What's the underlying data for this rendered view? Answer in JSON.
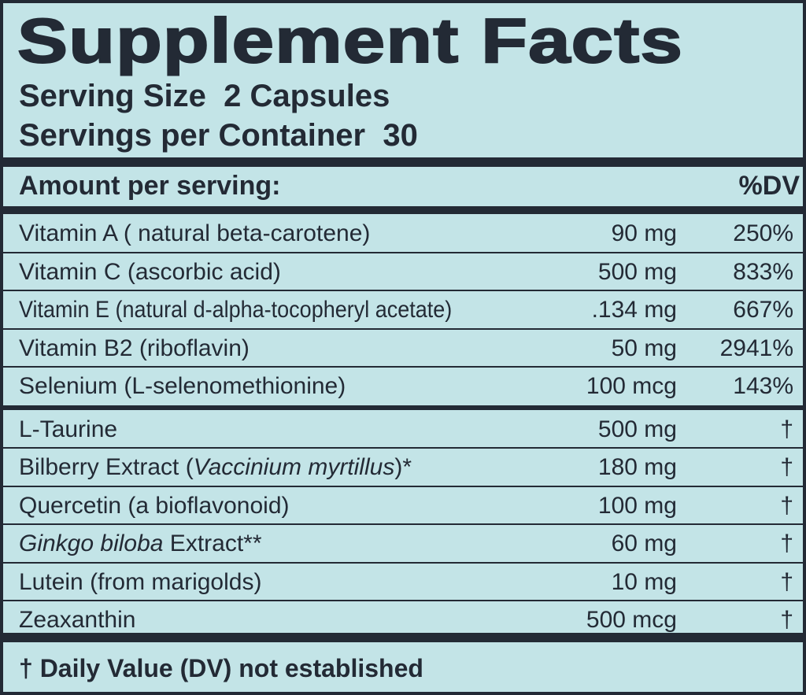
{
  "header": {
    "title": "Supplement Facts",
    "serving_size": "Serving Size  2 Capsules",
    "servings_per_container": "Servings per Container  30"
  },
  "amount_header": {
    "label": "Amount per serving:",
    "dv": "%DV"
  },
  "table": {
    "groups": [
      {
        "rows": [
          {
            "name": [
              {
                "text": "Vitamin A ( natural beta-carotene)"
              }
            ],
            "amount": "90 mg",
            "dv": "250%"
          },
          {
            "name": [
              {
                "text": "Vitamin C (ascorbic acid)"
              }
            ],
            "amount": "500 mg",
            "dv": "833%"
          },
          {
            "name": [
              {
                "text": "Vitamin E (natural d-alpha-tocopheryl acetate)"
              }
            ],
            "amount": ".134 mg",
            "dv": "667%",
            "condensed": true
          },
          {
            "name": [
              {
                "text": "Vitamin B2 (riboflavin)"
              }
            ],
            "amount": "50 mg",
            "dv": "2941%"
          },
          {
            "name": [
              {
                "text": "Selenium (L-selenomethionine)"
              }
            ],
            "amount": "100 mcg",
            "dv": "143%"
          }
        ]
      },
      {
        "rows": [
          {
            "name": [
              {
                "text": "L-Taurine"
              }
            ],
            "amount": "500 mg",
            "dv": "†"
          },
          {
            "name": [
              {
                "text": "Bilberry Extract ("
              },
              {
                "text": "Vaccinium myrtillus",
                "italic": true
              },
              {
                "text": ")*"
              }
            ],
            "amount": "180 mg",
            "dv": "†"
          },
          {
            "name": [
              {
                "text": "Quercetin (a bioflavonoid)"
              }
            ],
            "amount": "100 mg",
            "dv": "†"
          },
          {
            "name": [
              {
                "text": "Ginkgo biloba",
                "italic": true
              },
              {
                "text": " Extract**"
              }
            ],
            "amount": "60 mg",
            "dv": "†"
          },
          {
            "name": [
              {
                "text": "Lutein (from marigolds)"
              }
            ],
            "amount": "10 mg",
            "dv": "†"
          },
          {
            "name": [
              {
                "text": "Zeaxanthin"
              }
            ],
            "amount": "500 mcg",
            "dv": "†"
          }
        ]
      }
    ]
  },
  "footnote": "† Daily Value (DV) not established"
}
